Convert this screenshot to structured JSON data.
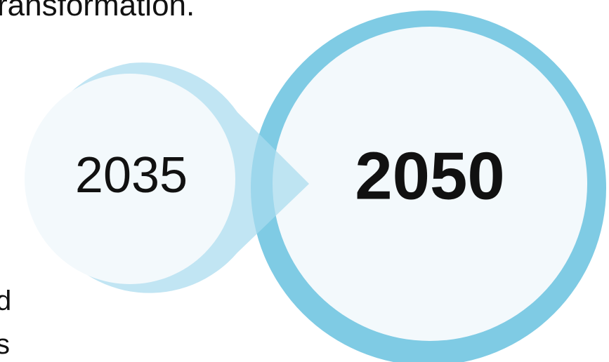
{
  "texts": {
    "top_line": "ransformation.",
    "left_line_1": "d",
    "left_line_2": "s"
  },
  "circles": [
    {
      "label": "2035"
    },
    {
      "label": "2050"
    }
  ]
}
